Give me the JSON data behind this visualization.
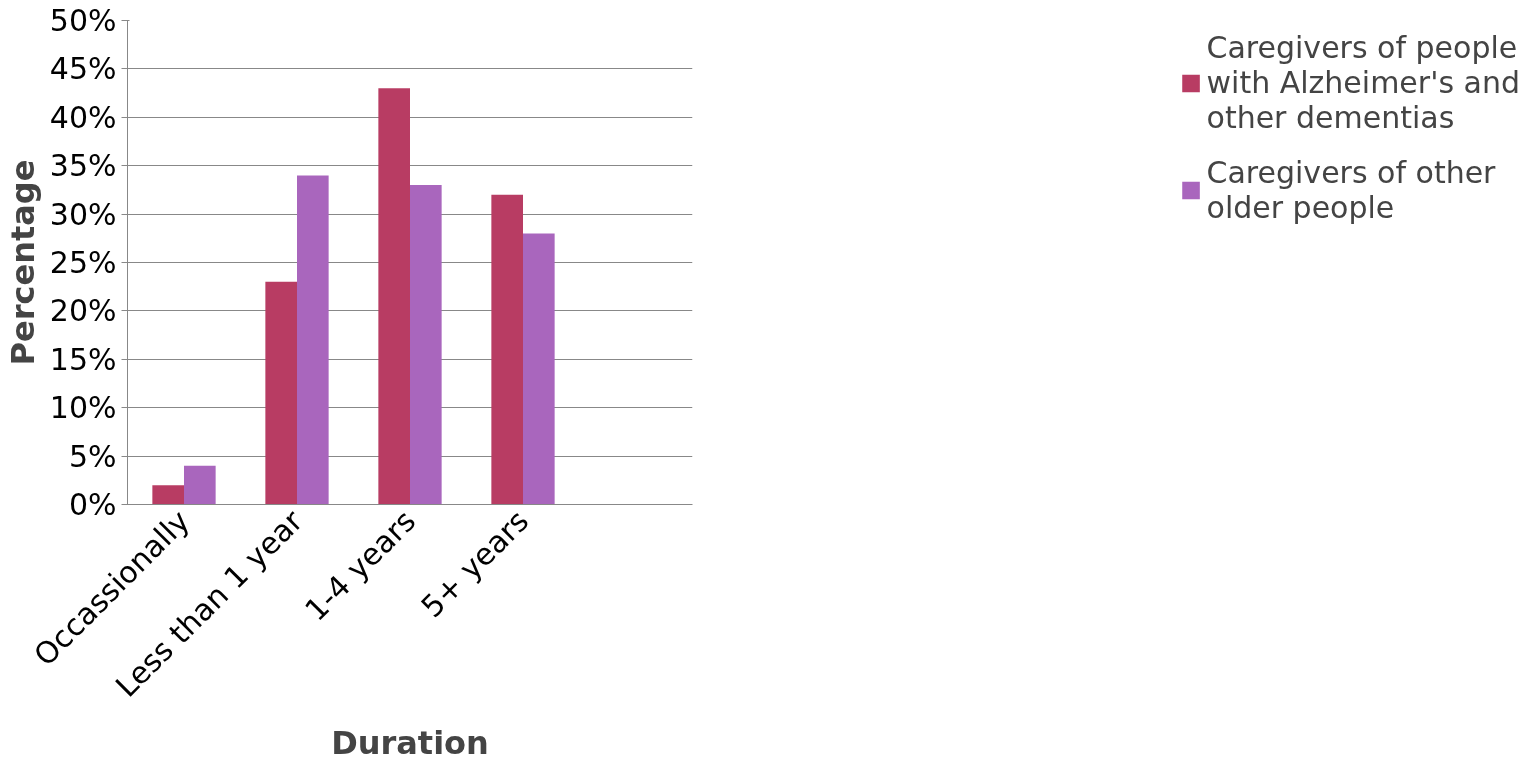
{
  "chart_data": {
    "type": "bar",
    "xlabel": "Duration",
    "ylabel": "Percentage",
    "categories": [
      "Occassionally",
      "Less than 1 year",
      "1-4 years",
      "5+ years",
      null
    ],
    "series": [
      {
        "name": "Caregivers of people with Alzheimer's and other dementias",
        "color": "#b83c63",
        "values": [
          2,
          23,
          43,
          32,
          null
        ]
      },
      {
        "name": "Caregivers of other older people",
        "color": "#a966bd",
        "values": [
          4,
          34,
          33,
          28,
          null
        ]
      }
    ],
    "ylim": [
      0,
      50
    ],
    "yticks": [
      {
        "value": 0,
        "label": "0%"
      },
      {
        "value": 5,
        "label": "5%"
      },
      {
        "value": 10,
        "label": "10%"
      },
      {
        "value": 15,
        "label": "15%"
      },
      {
        "value": 20,
        "label": "20%"
      },
      {
        "value": 25,
        "label": "25%"
      },
      {
        "value": 30,
        "label": "30%"
      },
      {
        "value": 35,
        "label": "35%"
      },
      {
        "value": 40,
        "label": "40%"
      },
      {
        "value": 45,
        "label": "45%"
      },
      {
        "value": 50,
        "label": "50%"
      }
    ],
    "grid": "y",
    "legend": "right"
  }
}
